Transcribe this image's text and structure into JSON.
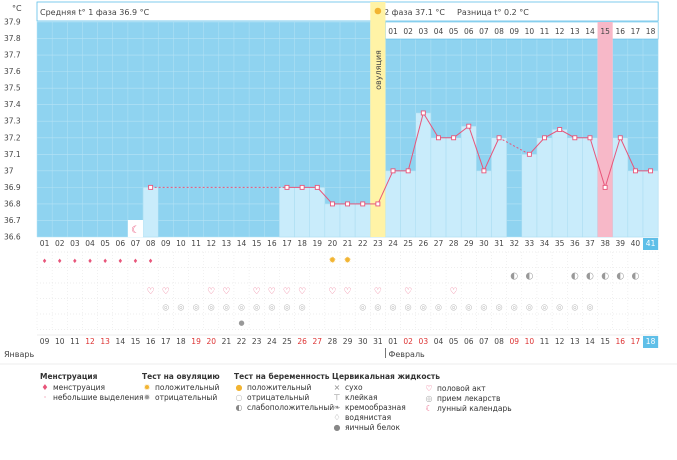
{
  "header": {
    "unit": "°C",
    "phase1_text": "Средняя t° 1 фаза 36.9 °C",
    "phase2_text": "2 фаза 37.1 °C",
    "diff_text": "Разница t° 0.2 °C",
    "sun_icon": "sun-icon"
  },
  "ovulation_label": "овуляция",
  "y_ticks": [
    "37.9",
    "37.8",
    "37.7",
    "37.6",
    "37.5",
    "37.4",
    "37.3",
    "37.2",
    "37.1",
    "37",
    "36.9",
    "36.8",
    "36.7",
    "36.6"
  ],
  "chart_data": {
    "type": "line",
    "ylim": [
      36.6,
      37.9
    ],
    "cycle_days": [
      "01",
      "02",
      "03",
      "04",
      "05",
      "06",
      "07",
      "08",
      "09",
      "10",
      "11",
      "12",
      "13",
      "14",
      "15",
      "16",
      "17",
      "18",
      "19",
      "20",
      "21",
      "22",
      "23",
      "24",
      "25",
      "26",
      "27",
      "28",
      "29",
      "30",
      "31",
      "32",
      "33",
      "34",
      "35",
      "36",
      "37",
      "38",
      "39",
      "40",
      "41"
    ],
    "phase2_days": [
      "01",
      "02",
      "03",
      "04",
      "05",
      "06",
      "07",
      "08",
      "09",
      "10",
      "11",
      "12",
      "13",
      "14",
      "15",
      "16",
      "17",
      "18"
    ],
    "temperatures": [
      null,
      null,
      null,
      null,
      null,
      null,
      null,
      36.9,
      null,
      null,
      null,
      null,
      null,
      null,
      null,
      null,
      36.9,
      36.9,
      36.9,
      36.8,
      36.8,
      36.8,
      36.8,
      37.0,
      37.0,
      37.35,
      37.2,
      37.2,
      37.27,
      37.0,
      37.2,
      null,
      37.1,
      37.2,
      37.25,
      37.2,
      37.2,
      36.9,
      37.2,
      37.0,
      37.0
    ],
    "ovulation_day": 23,
    "highlight_day": 38,
    "current_day": 41
  },
  "dates": [
    "09",
    "10",
    "11",
    "12",
    "13",
    "14",
    "15",
    "16",
    "17",
    "18",
    "19",
    "20",
    "21",
    "22",
    "23",
    "24",
    "25",
    "26",
    "27",
    "28",
    "29",
    "30",
    "31",
    "01",
    "02",
    "03",
    "04",
    "05",
    "06",
    "07",
    "08",
    "09",
    "10",
    "11",
    "12",
    "13",
    "14",
    "15",
    "16",
    "17",
    "18"
  ],
  "weekend_dates": [
    3,
    4,
    10,
    11,
    17,
    18,
    24,
    25,
    31,
    32,
    38,
    39
  ],
  "month_jan": "Январь",
  "month_feb": "Февраль",
  "colors": {
    "sky": "#8fd3f0",
    "bar": "#c9ecfb",
    "line": "#e8557a",
    "ovulation": "#fff3a6",
    "highlight": "#f7b8c8",
    "accent": "#5fbfe8"
  },
  "legend": {
    "menstruation": {
      "title": "Менструация",
      "items": [
        "менструация",
        "небольшие выделения"
      ]
    },
    "ovulation_test": {
      "title": "Тест на овуляцию",
      "items": [
        "положительный",
        "отрицательный"
      ]
    },
    "pregnancy_test": {
      "title": "Тест на беременность",
      "items": [
        "положительный",
        "отрицательный",
        "слабоположительный"
      ]
    },
    "cervical": {
      "title": "Цервикальная жидкость",
      "items": [
        "сухо",
        "клейкая",
        "кремообразная",
        "водянистая",
        "яичный белок"
      ]
    },
    "other": {
      "items": [
        "половой акт",
        "прием лекарств",
        "лунный календарь"
      ]
    }
  }
}
